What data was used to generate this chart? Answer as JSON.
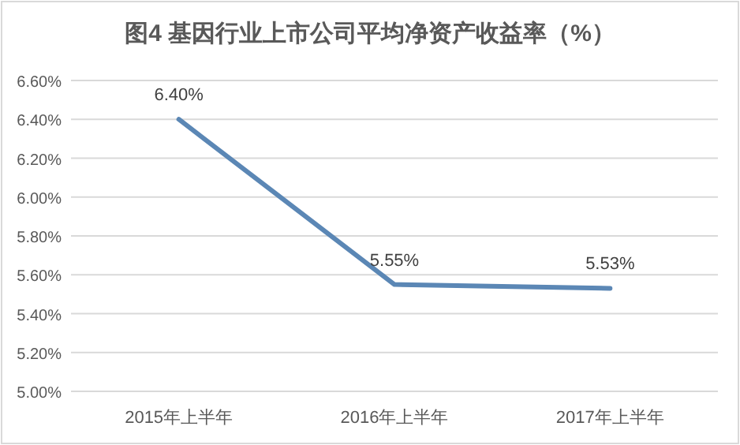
{
  "chart_data": {
    "type": "line",
    "title": "图4 基因行业上市公司平均净资产收益率（%）",
    "categories": [
      "2015年上半年",
      "2016年上半年",
      "2017年上半年"
    ],
    "series": [
      {
        "color": "#5b87b5",
        "values": [
          6.4,
          5.55,
          5.53
        ],
        "value_labels": [
          "6.40%",
          "5.55%",
          "5.53%"
        ]
      }
    ],
    "ylim": [
      5.0,
      6.6
    ],
    "yticks": [
      {
        "value": 5.0,
        "label": "5.00%"
      },
      {
        "value": 5.2,
        "label": "5.20%"
      },
      {
        "value": 5.4,
        "label": "5.40%"
      },
      {
        "value": 5.6,
        "label": "5.60%"
      },
      {
        "value": 5.8,
        "label": "5.80%"
      },
      {
        "value": 6.0,
        "label": "6.00%"
      },
      {
        "value": 6.2,
        "label": "6.20%"
      },
      {
        "value": 6.4,
        "label": "6.40%"
      },
      {
        "value": 6.6,
        "label": "6.60%"
      }
    ],
    "grid": "y",
    "marker": "none",
    "line_style": "solid"
  }
}
